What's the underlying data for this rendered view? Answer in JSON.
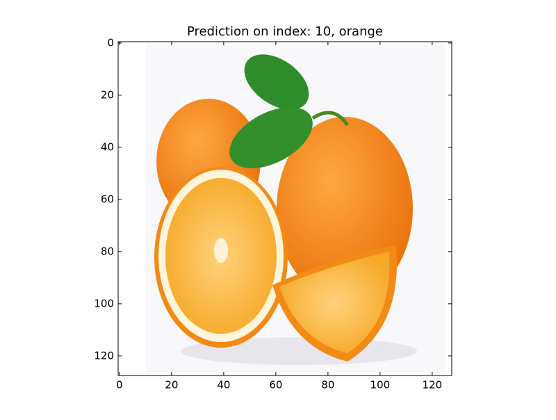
{
  "chart_data": {
    "type": "image",
    "title": "Prediction on index: 10, orange",
    "xlim": [
      -0.5,
      127.5
    ],
    "ylim": [
      127.5,
      -0.5
    ],
    "xticks": [
      0,
      20,
      40,
      60,
      80,
      100,
      120
    ],
    "yticks": [
      0,
      20,
      40,
      60,
      80,
      100,
      120
    ]
  }
}
